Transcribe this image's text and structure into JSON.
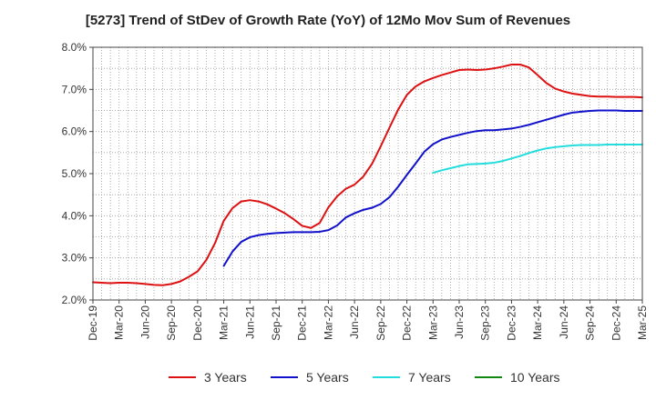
{
  "chart_data": {
    "type": "line",
    "title": "[5273]  Trend of StDev of Growth Rate (YoY) of 12Mo Mov Sum of Revenues",
    "xlabel": "",
    "ylabel": "",
    "ylim": [
      2.0,
      8.0
    ],
    "y_ticks": [
      "2.0%",
      "3.0%",
      "4.0%",
      "5.0%",
      "6.0%",
      "7.0%",
      "8.0%"
    ],
    "x_ticks": [
      "Dec-19",
      "Mar-20",
      "Jun-20",
      "Sep-20",
      "Dec-20",
      "Mar-21",
      "Jun-21",
      "Sep-21",
      "Dec-21",
      "Mar-22",
      "Jun-22",
      "Sep-22",
      "Dec-22",
      "Mar-23",
      "Jun-23",
      "Sep-23",
      "Dec-23",
      "Mar-24",
      "Jun-24",
      "Sep-24",
      "Dec-24",
      "Mar-25"
    ],
    "x_range_months": [
      0,
      63
    ],
    "grid": true,
    "legend_position": "bottom",
    "series": [
      {
        "name": "3 Years",
        "color": "#dd1111",
        "start_month": 0,
        "values": [
          2.42,
          2.41,
          2.4,
          2.41,
          2.41,
          2.4,
          2.38,
          2.36,
          2.35,
          2.38,
          2.44,
          2.55,
          2.68,
          2.95,
          3.35,
          3.88,
          4.18,
          4.34,
          4.37,
          4.34,
          4.27,
          4.17,
          4.06,
          3.92,
          3.76,
          3.71,
          3.83,
          4.2,
          4.46,
          4.64,
          4.74,
          4.93,
          5.23,
          5.65,
          6.09,
          6.52,
          6.87,
          7.07,
          7.19,
          7.27,
          7.34,
          7.4,
          7.46,
          7.47,
          7.46,
          7.47,
          7.5,
          7.54,
          7.59,
          7.59,
          7.52,
          7.34,
          7.15,
          7.02,
          6.95,
          6.9,
          6.87,
          6.84,
          6.83,
          6.83,
          6.82,
          6.82,
          6.82,
          6.81
        ]
      },
      {
        "name": "5 Years",
        "color": "#1111cc",
        "start_month": 15,
        "values": [
          2.81,
          3.15,
          3.38,
          3.49,
          3.54,
          3.57,
          3.59,
          3.6,
          3.61,
          3.61,
          3.61,
          3.62,
          3.66,
          3.77,
          3.96,
          4.06,
          4.14,
          4.19,
          4.28,
          4.44,
          4.69,
          4.97,
          5.24,
          5.52,
          5.7,
          5.81,
          5.87,
          5.92,
          5.97,
          6.01,
          6.03,
          6.03,
          6.05,
          6.07,
          6.11,
          6.16,
          6.22,
          6.28,
          6.34,
          6.4,
          6.45,
          6.47,
          6.49,
          6.5,
          6.5,
          6.5,
          6.49,
          6.49,
          6.49
        ]
      },
      {
        "name": "7 Years",
        "color": "#22dddd",
        "start_month": 39,
        "values": [
          5.02,
          5.08,
          5.13,
          5.18,
          5.22,
          5.23,
          5.24,
          5.26,
          5.3,
          5.36,
          5.42,
          5.49,
          5.55,
          5.6,
          5.63,
          5.65,
          5.67,
          5.68,
          5.68,
          5.68,
          5.69,
          5.69,
          5.69,
          5.69,
          5.69
        ]
      },
      {
        "name": "10 Years",
        "color": "#118811",
        "start_month": 0,
        "values": []
      }
    ]
  }
}
